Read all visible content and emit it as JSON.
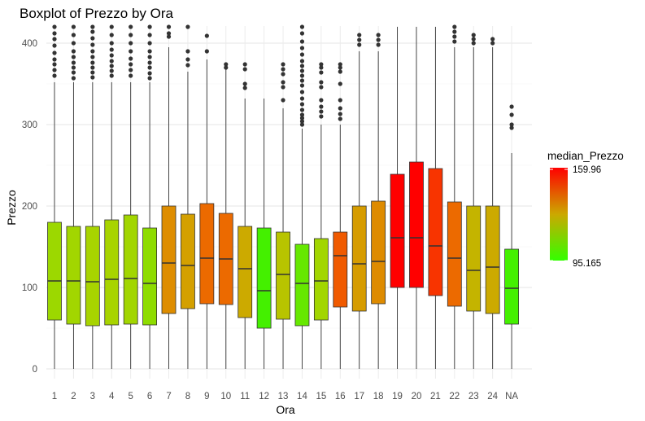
{
  "chart_data": {
    "type": "boxplot",
    "title": "Boxplot of Prezzo by Ora",
    "xlabel": "Ora",
    "ylabel": "Prezzo",
    "ylim": [
      -10,
      420
    ],
    "yticks": [
      0,
      100,
      200,
      300,
      400
    ],
    "grid": true,
    "categories": [
      "1",
      "2",
      "3",
      "4",
      "5",
      "6",
      "7",
      "8",
      "9",
      "10",
      "11",
      "12",
      "13",
      "14",
      "15",
      "16",
      "17",
      "18",
      "19",
      "20",
      "21",
      "22",
      "23",
      "24",
      "NA"
    ],
    "boxes": [
      {
        "q1": 60,
        "median": 108,
        "q3": 180,
        "whisker_low": 0,
        "whisker_high": 352,
        "fill": "#9cd800",
        "outliers": [
          360,
          367,
          374,
          380,
          388,
          397,
          405,
          412,
          420
        ]
      },
      {
        "q1": 55,
        "median": 108,
        "q3": 175,
        "whisker_low": 0,
        "whisker_high": 352,
        "fill": "#a2d600",
        "outliers": [
          357,
          364,
          370,
          376,
          383,
          390,
          400,
          410,
          420
        ]
      },
      {
        "q1": 53,
        "median": 107,
        "q3": 175,
        "whisker_low": 0,
        "whisker_high": 352,
        "fill": "#a8d400",
        "outliers": [
          358,
          364,
          370,
          376,
          383,
          390,
          398,
          406,
          414,
          420
        ]
      },
      {
        "q1": 54,
        "median": 110,
        "q3": 183,
        "whisker_low": 0,
        "whisker_high": 352,
        "fill": "#a8d400",
        "outliers": [
          360,
          366,
          372,
          378,
          385,
          392,
          400,
          410,
          420
        ]
      },
      {
        "q1": 55,
        "median": 111,
        "q3": 189,
        "whisker_low": 0,
        "whisker_high": 352,
        "fill": "#a2d600",
        "outliers": [
          360,
          367,
          374,
          381,
          390,
          400,
          410,
          420
        ]
      },
      {
        "q1": 54,
        "median": 105,
        "q3": 173,
        "whisker_low": 0,
        "whisker_high": 352,
        "fill": "#8edc00",
        "outliers": [
          357,
          363,
          370,
          376,
          383,
          390,
          400,
          410,
          420
        ]
      },
      {
        "q1": 68,
        "median": 130,
        "q3": 200,
        "whisker_low": 0,
        "whisker_high": 395,
        "fill": "#de8d00",
        "outliers": [
          408,
          412,
          420
        ]
      },
      {
        "q1": 74,
        "median": 127,
        "q3": 190,
        "whisker_low": 0,
        "whisker_high": 365,
        "fill": "#d4a000",
        "outliers": [
          373,
          380,
          390,
          420
        ]
      },
      {
        "q1": 80,
        "median": 136,
        "q3": 203,
        "whisker_low": 0,
        "whisker_high": 380,
        "fill": "#ec6a00",
        "outliers": [
          390,
          409
        ]
      },
      {
        "q1": 79,
        "median": 135,
        "q3": 191,
        "whisker_low": 0,
        "whisker_high": 370,
        "fill": "#ec6a00",
        "outliers": [
          370,
          374
        ]
      },
      {
        "q1": 63,
        "median": 123,
        "q3": 175,
        "whisker_low": 0,
        "whisker_high": 332,
        "fill": "#ccaa00",
        "outliers": [
          345,
          350,
          368,
          374
        ]
      },
      {
        "q1": 50,
        "median": 96,
        "q3": 173,
        "whisker_low": 0,
        "whisker_high": 332,
        "fill": "#44f000",
        "outliers": []
      },
      {
        "q1": 61,
        "median": 116,
        "q3": 168,
        "whisker_low": 0,
        "whisker_high": 320,
        "fill": "#b8c400",
        "outliers": [
          330,
          346,
          352,
          362,
          368,
          374
        ]
      },
      {
        "q1": 53,
        "median": 105,
        "q3": 153,
        "whisker_low": 0,
        "whisker_high": 295,
        "fill": "#66e800",
        "outliers": [
          300,
          304,
          308,
          312,
          318,
          325,
          332,
          340,
          348,
          354,
          360,
          366,
          372,
          378,
          386,
          394,
          402,
          412,
          420
        ]
      },
      {
        "q1": 60,
        "median": 108,
        "q3": 160,
        "whisker_low": 0,
        "whisker_high": 300,
        "fill": "#a2d600",
        "outliers": [
          310,
          316,
          322,
          330,
          346,
          352,
          364,
          370,
          374
        ]
      },
      {
        "q1": 76,
        "median": 139,
        "q3": 168,
        "whisker_low": 0,
        "whisker_high": 300,
        "fill": "#f05a00",
        "outliers": [
          307,
          313,
          320,
          330,
          350,
          365,
          370,
          374
        ]
      },
      {
        "q1": 71,
        "median": 129,
        "q3": 200,
        "whisker_low": 0,
        "whisker_high": 390,
        "fill": "#d69c00",
        "outliers": [
          398,
          404,
          410
        ]
      },
      {
        "q1": 80,
        "median": 132,
        "q3": 206,
        "whisker_low": 0,
        "whisker_high": 390,
        "fill": "#de8b00",
        "outliers": [
          398,
          404,
          410
        ]
      },
      {
        "q1": 100,
        "median": 161,
        "q3": 239,
        "whisker_low": 0,
        "whisker_high": 420,
        "fill": "#ff0000",
        "outliers": []
      },
      {
        "q1": 100,
        "median": 161,
        "q3": 254,
        "whisker_low": 0,
        "whisker_high": 420,
        "fill": "#ff0000",
        "outliers": []
      },
      {
        "q1": 90,
        "median": 151,
        "q3": 246,
        "whisker_low": 0,
        "whisker_high": 420,
        "fill": "#f83400",
        "outliers": []
      },
      {
        "q1": 77,
        "median": 136,
        "q3": 205,
        "whisker_low": 0,
        "whisker_high": 395,
        "fill": "#ec6a00",
        "outliers": [
          402,
          408,
          414,
          420
        ]
      },
      {
        "q1": 71,
        "median": 121,
        "q3": 200,
        "whisker_low": 0,
        "whisker_high": 395,
        "fill": "#c4b400",
        "outliers": [
          400,
          405,
          410
        ]
      },
      {
        "q1": 68,
        "median": 125,
        "q3": 200,
        "whisker_low": 0,
        "whisker_high": 395,
        "fill": "#ccaa00",
        "outliers": [
          400,
          405
        ]
      },
      {
        "q1": 55,
        "median": 99,
        "q3": 147,
        "whisker_low": 0,
        "whisker_high": 265,
        "fill": "#44f000",
        "outliers": [
          296,
          300,
          312,
          322
        ]
      }
    ],
    "legend": {
      "title": "median_Prezzo",
      "max_label": "159.96",
      "min_label": "95.165",
      "color_low": "#33ff00",
      "color_mid": "#cca800",
      "color_high": "#ff0000"
    }
  }
}
